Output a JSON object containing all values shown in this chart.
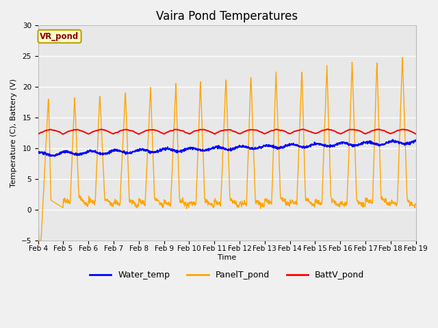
{
  "title": "Vaira Pond Temperatures",
  "ylabel": "Temperature (C), Battery (V)",
  "xlabel": "Time",
  "legend_label": "VR_pond",
  "series_labels": [
    "Water_temp",
    "PanelT_pond",
    "BattV_pond"
  ],
  "series_colors": [
    "blue",
    "#FFA500",
    "red"
  ],
  "ylim": [
    -5,
    30
  ],
  "xlim_days": 15,
  "fig_facecolor": "#f0f0f0",
  "axes_facecolor": "#e8e8e8",
  "grid_color": "white",
  "xtick_labels": [
    "Feb 4",
    "Feb 5",
    "Feb 6",
    "Feb 7",
    "Feb 8",
    "Feb 9",
    "Feb 10",
    "Feb 11",
    "Feb 12",
    "Feb 13",
    "Feb 14",
    "Feb 15",
    "Feb 16",
    "Feb 17",
    "Feb 18",
    "Feb 19"
  ],
  "title_fontsize": 12,
  "axis_label_fontsize": 8,
  "tick_fontsize": 7.5,
  "legend_fontsize": 9
}
